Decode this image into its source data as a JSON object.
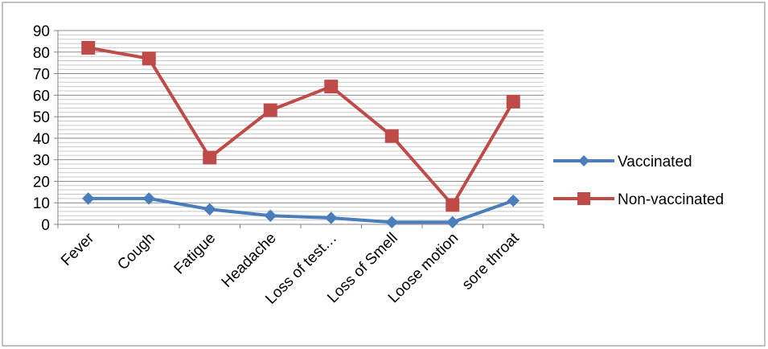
{
  "chart_data": {
    "type": "line",
    "categories": [
      "Fever",
      "Cough",
      "Fatigue",
      "Headache",
      "Loss of test…",
      "Loss of Smell",
      "Loose motion",
      "sore throat"
    ],
    "series": [
      {
        "name": "Vaccinated",
        "values": [
          12,
          12,
          7,
          4,
          3,
          1,
          1,
          11
        ],
        "color": "#4a7ebb",
        "marker": "diamond"
      },
      {
        "name": "Non-vaccinated",
        "values": [
          82,
          77,
          31,
          53,
          64,
          41,
          9,
          57
        ],
        "color": "#be4b48",
        "marker": "square"
      }
    ],
    "title": "",
    "xlabel": "",
    "ylabel": "",
    "ylim": [
      0,
      90
    ],
    "y_ticks": [
      "0",
      "10",
      "20",
      "30",
      "40",
      "50",
      "60",
      "70",
      "80",
      "90"
    ],
    "grid": true,
    "legend_position": "right"
  }
}
